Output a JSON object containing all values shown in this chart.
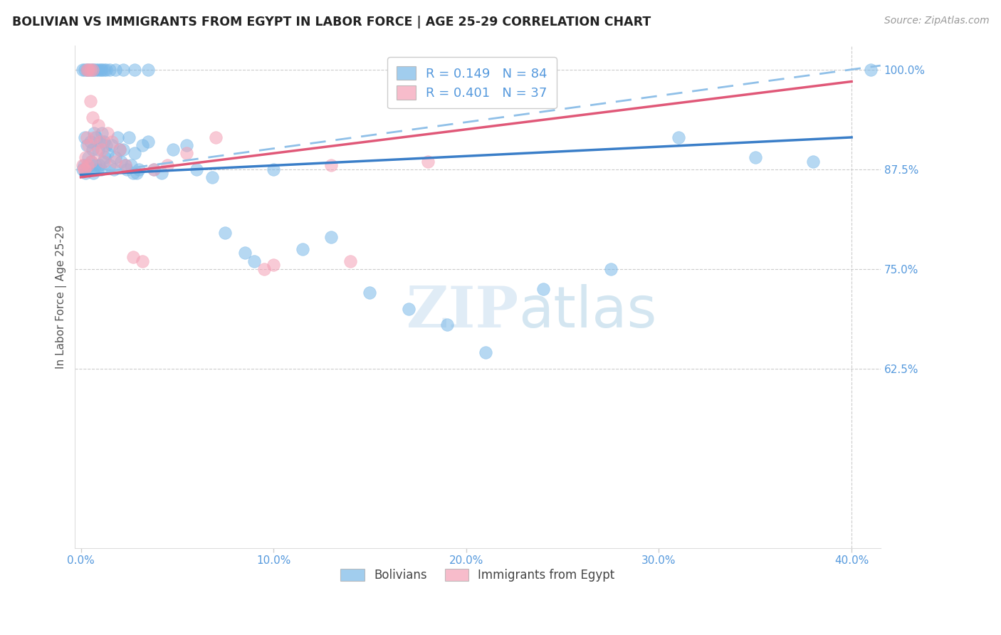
{
  "title": "BOLIVIAN VS IMMIGRANTS FROM EGYPT IN LABOR FORCE | AGE 25-29 CORRELATION CHART",
  "source": "Source: ZipAtlas.com",
  "ylabel": "In Labor Force | Age 25-29",
  "xlim": [
    -0.3,
    41.5
  ],
  "ylim": [
    40.0,
    103.0
  ],
  "x_ticks": [
    0.0,
    10.0,
    20.0,
    30.0,
    40.0
  ],
  "x_tick_labels": [
    "0.0%",
    "10.0%",
    "20.0%",
    "30.0%",
    "40.0%"
  ],
  "y_ticks": [
    62.5,
    75.0,
    87.5,
    100.0
  ],
  "y_tick_labels": [
    "62.5%",
    "75.0%",
    "87.5%",
    "100.0%"
  ],
  "blue_fill": "#7AB8E8",
  "blue_edge": "#7AB8E8",
  "pink_fill": "#F4A0B5",
  "pink_edge": "#F4A0B5",
  "blue_line": "#3A7EC8",
  "pink_line": "#E05878",
  "dash_line": "#90C0E8",
  "grid_color": "#CCCCCC",
  "tick_color": "#5599DD",
  "title_color": "#222222",
  "source_color": "#999999",
  "ylabel_color": "#555555",
  "watermark_color": "#C8DDEF",
  "R_blue": "0.149",
  "N_blue": "84",
  "R_pink": "0.401",
  "N_pink": "37",
  "legend_label_blue": "Bolivians",
  "legend_label_pink": "Immigrants from Egypt",
  "blue_trend_x0": 0.0,
  "blue_trend_y0": 86.8,
  "blue_trend_x1": 40.0,
  "blue_trend_y1": 91.5,
  "pink_trend_x0": 0.0,
  "pink_trend_y0": 86.5,
  "pink_trend_x1": 40.0,
  "pink_trend_y1": 98.5,
  "dash_trend_x0": 0.0,
  "dash_trend_y0": 86.8,
  "dash_trend_x1": 41.5,
  "dash_trend_y1": 100.5,
  "blue_x": [
    0.1,
    0.15,
    0.2,
    0.25,
    0.3,
    0.35,
    0.4,
    0.45,
    0.5,
    0.55,
    0.6,
    0.65,
    0.7,
    0.75,
    0.8,
    0.85,
    0.9,
    0.95,
    1.0,
    1.05,
    1.1,
    1.15,
    1.2,
    1.25,
    1.3,
    1.4,
    1.5,
    1.6,
    1.7,
    1.8,
    1.9,
    2.0,
    2.1,
    2.2,
    2.3,
    2.4,
    2.5,
    2.6,
    2.7,
    2.8,
    2.9,
    3.0,
    3.2,
    3.5,
    3.8,
    4.2,
    4.8,
    5.5,
    6.0,
    6.8,
    7.5,
    8.5,
    9.0,
    10.0,
    11.5,
    13.0,
    15.0,
    17.0,
    19.0,
    21.0,
    24.0,
    27.5,
    31.0,
    35.0,
    38.0,
    0.1,
    0.2,
    0.3,
    0.4,
    0.5,
    0.6,
    0.7,
    0.8,
    0.9,
    1.0,
    1.1,
    1.2,
    1.3,
    1.5,
    1.8,
    2.2,
    2.8,
    3.5,
    41.0
  ],
  "blue_y": [
    87.5,
    88.0,
    91.5,
    87.0,
    90.5,
    88.0,
    89.0,
    87.5,
    91.0,
    88.5,
    90.0,
    87.0,
    92.0,
    88.0,
    91.5,
    87.5,
    90.0,
    88.0,
    91.0,
    87.5,
    92.0,
    88.5,
    91.0,
    89.0,
    90.5,
    89.5,
    88.0,
    90.5,
    87.5,
    89.0,
    91.5,
    90.0,
    88.5,
    90.0,
    88.0,
    87.5,
    91.5,
    88.0,
    87.0,
    89.5,
    87.0,
    87.5,
    90.5,
    91.0,
    87.5,
    87.0,
    90.0,
    90.5,
    87.5,
    86.5,
    79.5,
    77.0,
    76.0,
    87.5,
    77.5,
    79.0,
    72.0,
    70.0,
    68.0,
    64.5,
    72.5,
    75.0,
    91.5,
    89.0,
    88.5,
    100.0,
    100.0,
    100.0,
    100.0,
    100.0,
    100.0,
    100.0,
    100.0,
    100.0,
    100.0,
    100.0,
    100.0,
    100.0,
    100.0,
    100.0,
    100.0,
    100.0,
    100.0,
    100.0
  ],
  "pink_x": [
    0.1,
    0.15,
    0.2,
    0.25,
    0.3,
    0.35,
    0.4,
    0.5,
    0.55,
    0.6,
    0.7,
    0.8,
    0.9,
    1.0,
    1.1,
    1.2,
    1.4,
    1.6,
    1.8,
    2.0,
    2.3,
    2.7,
    3.2,
    3.8,
    4.5,
    5.5,
    7.0,
    9.5,
    13.0,
    18.0,
    22.0,
    10.0,
    14.0,
    0.3,
    0.4,
    0.5,
    0.6
  ],
  "pink_y": [
    88.0,
    87.5,
    87.5,
    89.0,
    91.5,
    88.0,
    90.5,
    96.0,
    88.5,
    94.0,
    91.5,
    89.5,
    93.0,
    91.0,
    90.0,
    88.5,
    92.0,
    91.0,
    88.5,
    90.0,
    88.0,
    76.5,
    76.0,
    87.5,
    88.0,
    89.5,
    91.5,
    75.0,
    88.0,
    88.5,
    100.0,
    75.5,
    76.0,
    100.0,
    100.0,
    100.0,
    100.0
  ]
}
